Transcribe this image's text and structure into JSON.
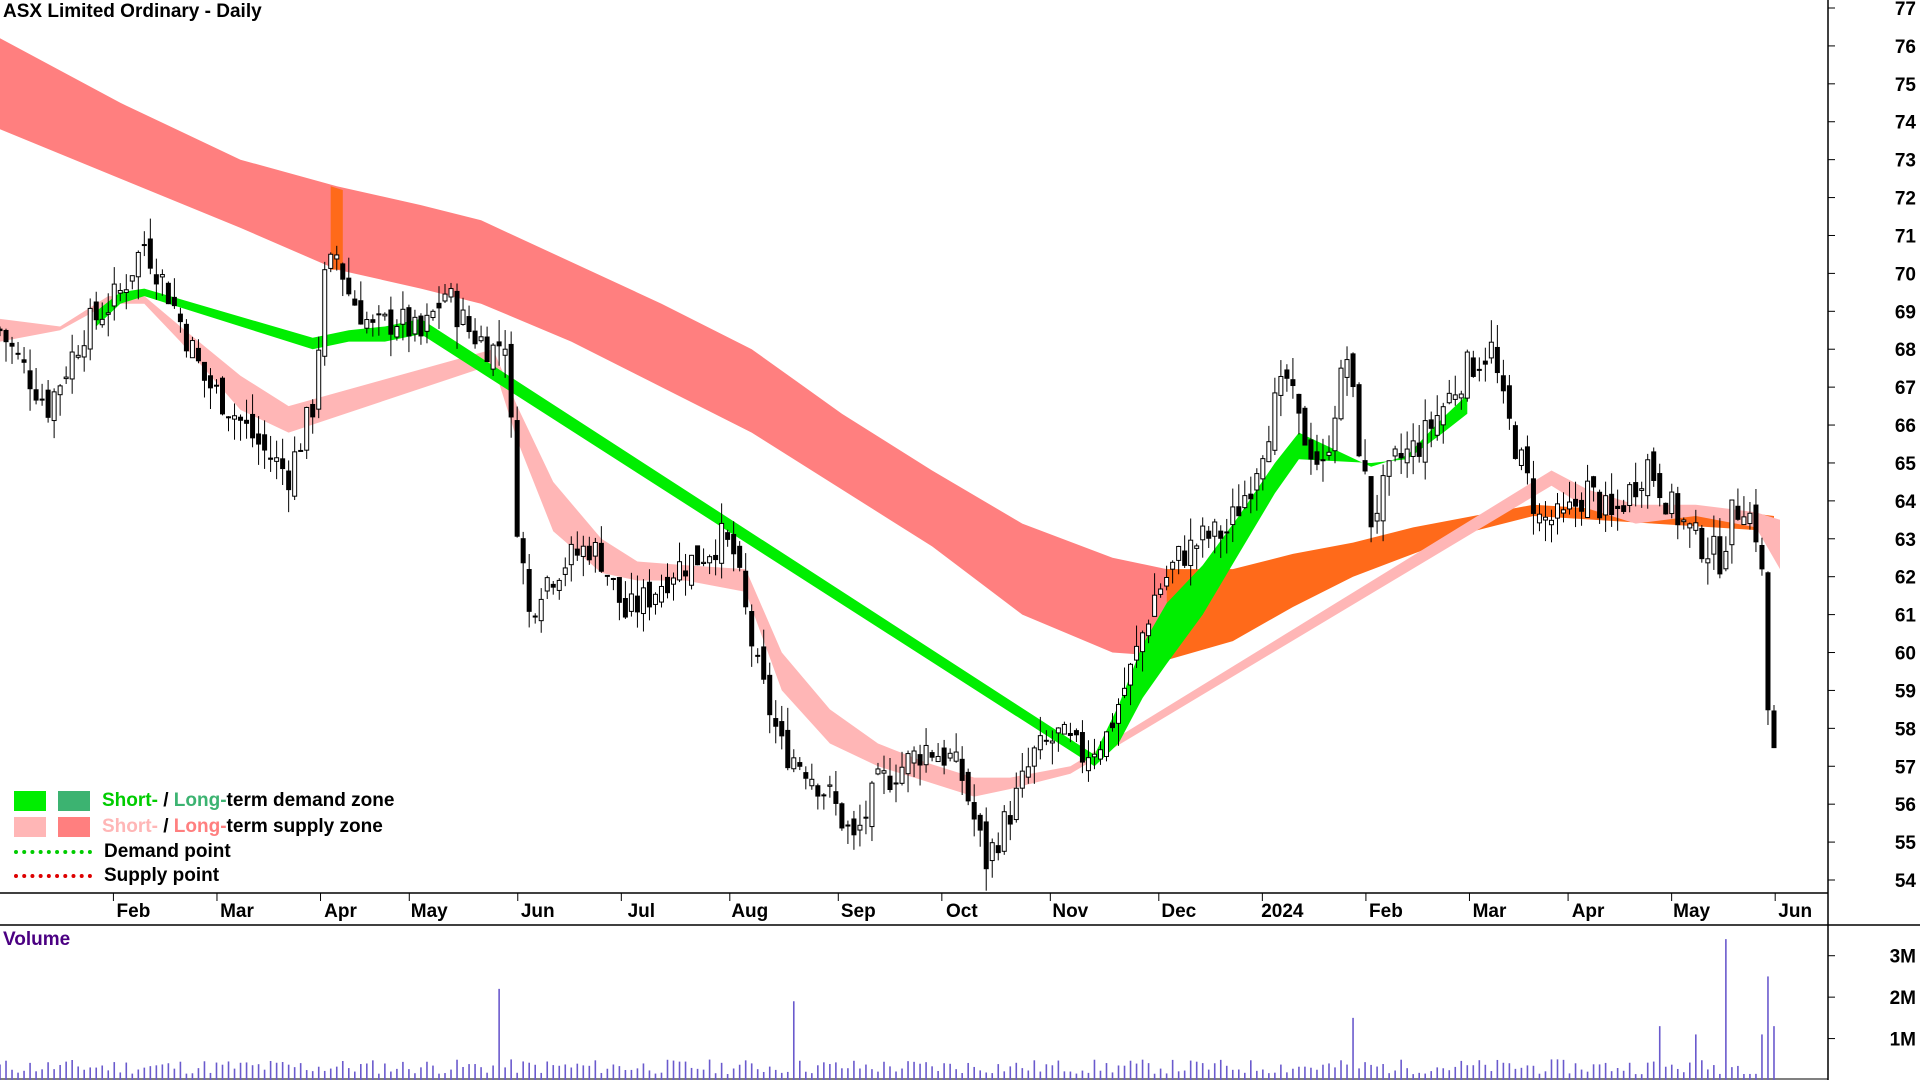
{
  "title": "ASX Limited Ordinary - Daily",
  "volume_label": "Volume",
  "colors": {
    "candle": "#000000",
    "short_demand": "#00ee00",
    "long_demand": "#3cb371",
    "short_supply": "#ffb6b6",
    "long_supply": "#ff7f7f",
    "transition": "#ff6a1a",
    "volume_bar": "#6a5acd",
    "axis": "#000000"
  },
  "legend": {
    "items": [
      {
        "prefix": "Short-",
        "sep": " / ",
        "middle": "Long-",
        "suffix": "term demand zone",
        "swatch1": "#00ee00",
        "swatch2": "#3cb371",
        "prefix_color": "#00cc00",
        "middle_color": "#3cb371"
      },
      {
        "prefix": "Short-",
        "sep": " / ",
        "middle": "Long-",
        "suffix": "term supply zone",
        "swatch1": "#ffb6b6",
        "swatch2": "#ff7f7f",
        "prefix_color": "#ffb6b6",
        "middle_color": "#ff7f7f"
      },
      {
        "line": "Demand point",
        "line_color": "#00cc00"
      },
      {
        "line": "Supply point",
        "line_color": "#dd0000"
      }
    ]
  },
  "chart_data": [
    {
      "type": "candlestick",
      "title": "ASX Limited Ordinary - Daily",
      "ylim": [
        54,
        77
      ],
      "y_ticks": [
        "54",
        "55",
        "56",
        "57",
        "58",
        "59",
        "60",
        "61",
        "62",
        "63",
        "64",
        "65",
        "66",
        "67",
        "68",
        "69",
        "70",
        "71",
        "72",
        "73",
        "74",
        "75",
        "76",
        "77"
      ],
      "x_ticks": [
        "Feb",
        "Mar",
        "Apr",
        "May",
        "Jun",
        "Jul",
        "Aug",
        "Sep",
        "Oct",
        "Nov",
        "Dec",
        "2024",
        "Feb",
        "Mar",
        "Apr",
        "May",
        "Jun"
      ],
      "grid": false,
      "legend_position": "bottom-left",
      "price_path": [
        [
          0,
          68.5
        ],
        [
          8,
          66.5
        ],
        [
          14,
          68.5
        ],
        [
          20,
          69.5
        ],
        [
          24,
          70.8
        ],
        [
          28,
          69.5
        ],
        [
          34,
          67.2
        ],
        [
          38,
          66.5
        ],
        [
          44,
          65.3
        ],
        [
          48,
          64.7
        ],
        [
          52,
          66.5
        ],
        [
          54,
          69.8
        ],
        [
          56,
          70.5
        ],
        [
          58,
          69.5
        ],
        [
          62,
          68.5
        ],
        [
          66,
          68.8
        ],
        [
          70,
          68.3
        ],
        [
          74,
          69.5
        ],
        [
          78,
          68.5
        ],
        [
          82,
          68.0
        ],
        [
          84,
          68.3
        ],
        [
          86,
          63.5
        ],
        [
          88,
          61.0
        ],
        [
          90,
          61.8
        ],
        [
          94,
          62.4
        ],
        [
          98,
          62.8
        ],
        [
          100,
          62.5
        ],
        [
          104,
          61.0
        ],
        [
          108,
          61.5
        ],
        [
          112,
          62.2
        ],
        [
          116,
          62.5
        ],
        [
          120,
          63.0
        ],
        [
          122,
          62.6
        ],
        [
          126,
          59.5
        ],
        [
          130,
          57.5
        ],
        [
          134,
          57.0
        ],
        [
          138,
          56.2
        ],
        [
          142,
          55.0
        ],
        [
          146,
          56.5
        ],
        [
          150,
          57.0
        ],
        [
          154,
          57.5
        ],
        [
          158,
          57.2
        ],
        [
          160,
          56.7
        ],
        [
          164,
          54.5
        ],
        [
          168,
          55.8
        ],
        [
          172,
          57.3
        ],
        [
          176,
          57.8
        ],
        [
          180,
          57.3
        ],
        [
          184,
          57.8
        ],
        [
          188,
          59.5
        ],
        [
          192,
          61.5
        ],
        [
          196,
          62.5
        ],
        [
          200,
          63.0
        ],
        [
          204,
          63.2
        ],
        [
          208,
          64.5
        ],
        [
          212,
          66.5
        ],
        [
          214,
          67.2
        ],
        [
          216,
          66.0
        ],
        [
          220,
          64.8
        ],
        [
          222,
          66.5
        ],
        [
          224,
          67.8
        ],
        [
          226,
          65.5
        ],
        [
          228,
          63.5
        ],
        [
          232,
          65.0
        ],
        [
          236,
          65.5
        ],
        [
          240,
          66.5
        ],
        [
          244,
          67.5
        ],
        [
          248,
          68.0
        ],
        [
          250,
          66.5
        ],
        [
          252,
          65.5
        ],
        [
          254,
          64.5
        ],
        [
          256,
          63.5
        ],
        [
          260,
          63.5
        ],
        [
          264,
          64.3
        ],
        [
          268,
          63.5
        ],
        [
          272,
          64.5
        ],
        [
          274,
          65.0
        ],
        [
          278,
          63.8
        ],
        [
          282,
          63.0
        ],
        [
          286,
          62.5
        ],
        [
          288,
          63.6
        ],
        [
          290,
          64.0
        ],
        [
          292,
          63.2
        ],
        [
          293,
          62.0
        ],
        [
          294,
          58.5
        ],
        [
          295,
          57.3
        ]
      ],
      "zones": [
        {
          "name": "Long-term supply zone",
          "color": "#ff7f7f",
          "upper": [
            [
              0,
              76.2
            ],
            [
              20,
              74.5
            ],
            [
              40,
              73.0
            ],
            [
              56,
              72.3
            ],
            [
              70,
              71.8
            ],
            [
              80,
              71.4
            ],
            [
              95,
              70.3
            ],
            [
              110,
              69.2
            ],
            [
              125,
              68.0
            ],
            [
              140,
              66.3
            ],
            [
              155,
              64.8
            ],
            [
              170,
              63.4
            ],
            [
              185,
              62.5
            ],
            [
              194,
              62.2
            ]
          ],
          "lower": [
            [
              0,
              73.8
            ],
            [
              20,
              72.5
            ],
            [
              40,
              71.2
            ],
            [
              56,
              70.1
            ],
            [
              70,
              69.6
            ],
            [
              80,
              69.2
            ],
            [
              95,
              68.2
            ],
            [
              110,
              67.0
            ],
            [
              125,
              65.8
            ],
            [
              140,
              64.3
            ],
            [
              155,
              62.8
            ],
            [
              170,
              61.0
            ],
            [
              185,
              60.0
            ],
            [
              194,
              59.9
            ]
          ]
        },
        {
          "name": "Long-term supply zone transition",
          "color": "#ff6a1a",
          "upper": [
            [
              55,
              72.3
            ],
            [
              57,
              72.2
            ]
          ],
          "lower": [
            [
              55,
              70.1
            ],
            [
              57,
              70.1
            ]
          ]
        },
        {
          "name": "Long-term demand-supply transition",
          "color": "#ff6a1a",
          "upper": [
            [
              194,
              62.2
            ],
            [
              205,
              62.2
            ],
            [
              215,
              62.6
            ],
            [
              225,
              62.9
            ],
            [
              235,
              63.3
            ],
            [
              245,
              63.6
            ],
            [
              255,
              63.9
            ],
            [
              265,
              63.8
            ],
            [
              275,
              63.8
            ],
            [
              285,
              63.8
            ],
            [
              295,
              63.6
            ]
          ],
          "lower": [
            [
              194,
              59.8
            ],
            [
              205,
              60.3
            ],
            [
              215,
              61.2
            ],
            [
              225,
              62.0
            ],
            [
              235,
              62.6
            ],
            [
              245,
              63.2
            ],
            [
              255,
              63.6
            ],
            [
              265,
              63.5
            ],
            [
              275,
              63.4
            ],
            [
              285,
              63.3
            ],
            [
              295,
              63.2
            ]
          ]
        },
        {
          "name": "Short-term supply zone",
          "color": "#ffb6b6",
          "upper": [
            [
              0,
              68.8
            ],
            [
              10,
              68.6
            ],
            [
              18,
              69.4
            ],
            [
              24,
              69.4
            ],
            [
              30,
              68.6
            ],
            [
              40,
              67.3
            ],
            [
              48,
              66.5
            ],
            [
              82,
              68.0
            ],
            [
              86,
              66.5
            ],
            [
              92,
              64.5
            ],
            [
              100,
              63.0
            ],
            [
              106,
              62.4
            ],
            [
              114,
              62.3
            ],
            [
              124,
              62.2
            ],
            [
              130,
              60.0
            ],
            [
              138,
              58.5
            ],
            [
              146,
              57.6
            ],
            [
              154,
              57.1
            ],
            [
              162,
              56.7
            ],
            [
              168,
              56.7
            ],
            [
              178,
              57.0
            ],
            [
              258,
              64.8
            ],
            [
              264,
              64.3
            ],
            [
              272,
              63.9
            ],
            [
              282,
              63.9
            ],
            [
              292,
              63.7
            ],
            [
              296,
              63.5
            ]
          ],
          "lower": [
            [
              0,
              68.2
            ],
            [
              10,
              68.5
            ],
            [
              18,
              69.2
            ],
            [
              24,
              69.2
            ],
            [
              30,
              68.2
            ],
            [
              40,
              66.4
            ],
            [
              48,
              65.8
            ],
            [
              82,
              67.6
            ],
            [
              86,
              65.6
            ],
            [
              92,
              63.2
            ],
            [
              100,
              62.1
            ],
            [
              106,
              61.9
            ],
            [
              114,
              61.9
            ],
            [
              124,
              61.6
            ],
            [
              130,
              59.0
            ],
            [
              138,
              57.6
            ],
            [
              146,
              57.0
            ],
            [
              154,
              56.6
            ],
            [
              162,
              56.2
            ],
            [
              168,
              56.4
            ],
            [
              178,
              56.8
            ],
            [
              258,
              64.4
            ],
            [
              264,
              63.8
            ],
            [
              272,
              63.4
            ],
            [
              282,
              63.6
            ],
            [
              292,
              63.3
            ],
            [
              296,
              62.2
            ]
          ]
        },
        {
          "name": "Short-term demand zone",
          "color": "#00ee00",
          "upper": [
            [
              16,
              69.0
            ],
            [
              20,
              69.5
            ],
            [
              24,
              69.6
            ],
            [
              52,
              68.3
            ],
            [
              58,
              68.5
            ],
            [
              64,
              68.6
            ],
            [
              70,
              68.8
            ],
            [
              182,
              57.3
            ],
            [
              186,
              58.6
            ],
            [
              190,
              60.2
            ],
            [
              194,
              61.3
            ],
            [
              200,
              62.3
            ],
            [
              206,
              63.6
            ],
            [
              212,
              65.0
            ],
            [
              216,
              65.8
            ],
            [
              228,
              64.9
            ],
            [
              234,
              65.2
            ],
            [
              240,
              66.2
            ],
            [
              244,
              66.8
            ]
          ],
          "lower": [
            [
              16,
              68.6
            ],
            [
              20,
              69.2
            ],
            [
              24,
              69.4
            ],
            [
              52,
              68.0
            ],
            [
              58,
              68.2
            ],
            [
              64,
              68.2
            ],
            [
              70,
              68.4
            ],
            [
              182,
              57.0
            ],
            [
              186,
              57.6
            ],
            [
              190,
              58.8
            ],
            [
              194,
              59.7
            ],
            [
              200,
              61.0
            ],
            [
              206,
              62.6
            ],
            [
              212,
              64.2
            ],
            [
              216,
              65.1
            ],
            [
              228,
              65.0
            ],
            [
              234,
              65.1
            ],
            [
              240,
              65.8
            ],
            [
              244,
              66.3
            ]
          ]
        }
      ]
    },
    {
      "type": "bar",
      "title": "Volume",
      "y_ticks": [
        "1M",
        "2M",
        "3M"
      ],
      "ylim": [
        0,
        3.5
      ],
      "spikes": [
        {
          "x": 83,
          "value": 2.2
        },
        {
          "x": 132,
          "value": 1.9
        },
        {
          "x": 225,
          "value": 1.5
        },
        {
          "x": 276,
          "value": 1.3
        },
        {
          "x": 282,
          "value": 1.1
        },
        {
          "x": 287,
          "value": 3.4
        },
        {
          "x": 293,
          "value": 1.1
        },
        {
          "x": 294,
          "value": 2.5
        },
        {
          "x": 295,
          "value": 1.3
        }
      ],
      "baseline_value": 0.4
    }
  ]
}
